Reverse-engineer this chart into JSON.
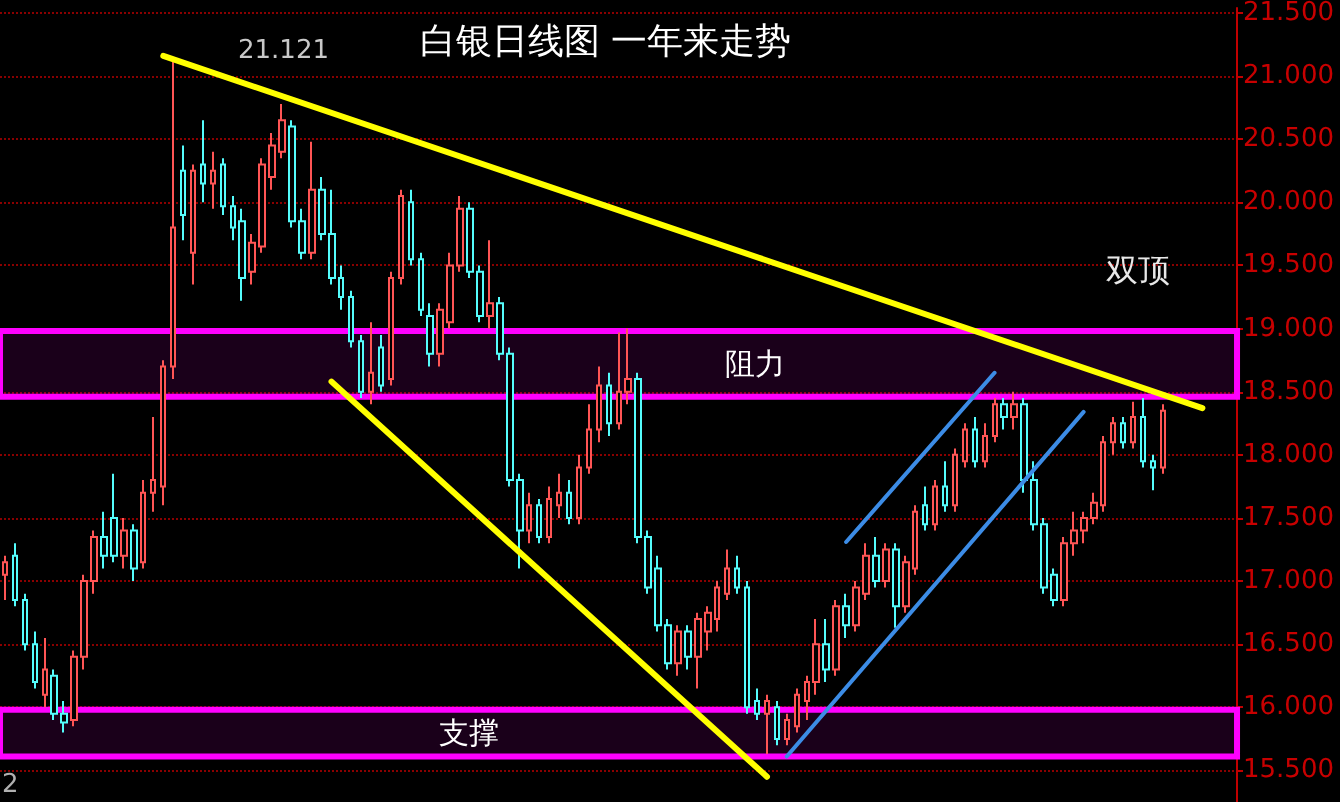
{
  "chart_data": {
    "type": "candlestick",
    "title": "白银日线图 一年来走势",
    "categories": [
      null,
      null,
      null,
      null,
      null,
      null,
      null,
      null,
      null,
      null,
      null,
      null,
      null,
      null,
      null,
      null,
      null,
      null,
      null,
      null,
      null,
      null,
      null,
      null,
      null,
      null,
      null,
      null,
      null,
      null,
      null,
      null,
      null,
      null,
      null,
      null,
      null,
      null,
      null,
      null,
      null,
      null,
      null,
      null,
      null,
      null,
      null,
      null,
      null,
      null,
      null,
      null,
      null,
      null,
      null,
      null,
      null,
      null,
      null,
      null,
      null,
      null,
      null,
      null,
      null,
      null,
      null,
      null,
      null,
      null,
      null,
      null,
      null,
      null,
      null,
      null,
      null,
      null,
      null,
      null,
      null,
      null,
      null,
      null,
      null,
      null,
      null,
      null,
      null,
      null,
      null,
      null,
      null,
      null,
      null,
      null,
      null,
      null,
      null,
      null,
      null,
      null,
      null,
      null,
      null,
      null,
      null,
      null,
      null,
      null,
      null,
      null,
      null,
      null,
      null,
      null,
      null,
      null,
      null,
      null,
      null,
      null,
      null,
      null,
      null
    ],
    "ohlc": [
      [
        17.05,
        17.2,
        16.85,
        17.15
      ],
      [
        17.2,
        17.3,
        16.8,
        16.85
      ],
      [
        16.85,
        16.9,
        16.45,
        16.5
      ],
      [
        16.5,
        16.6,
        16.15,
        16.2
      ],
      [
        16.1,
        16.55,
        16.0,
        16.3
      ],
      [
        16.25,
        16.3,
        15.9,
        15.95
      ],
      [
        15.95,
        16.05,
        15.8,
        15.88
      ],
      [
        15.9,
        16.45,
        15.85,
        16.4
      ],
      [
        16.4,
        17.05,
        16.3,
        17.0
      ],
      [
        17.0,
        17.4,
        16.9,
        17.35
      ],
      [
        17.35,
        17.55,
        17.1,
        17.2
      ],
      [
        17.5,
        17.85,
        17.15,
        17.2
      ],
      [
        17.2,
        17.5,
        17.1,
        17.4
      ],
      [
        17.4,
        17.45,
        17.0,
        17.1
      ],
      [
        17.15,
        17.8,
        17.1,
        17.7
      ],
      [
        17.7,
        18.3,
        17.55,
        17.8
      ],
      [
        17.75,
        18.75,
        17.6,
        18.7
      ],
      [
        18.7,
        21.121,
        18.6,
        19.8
      ],
      [
        20.25,
        20.45,
        19.7,
        19.9
      ],
      [
        19.6,
        20.3,
        19.35,
        20.25
      ],
      [
        20.3,
        20.65,
        20.0,
        20.15
      ],
      [
        20.15,
        20.4,
        19.95,
        20.25
      ],
      [
        20.3,
        20.35,
        19.9,
        19.97
      ],
      [
        19.97,
        20.05,
        19.7,
        19.8
      ],
      [
        19.85,
        19.95,
        19.22,
        19.4
      ],
      [
        19.45,
        19.75,
        19.35,
        19.68
      ],
      [
        19.65,
        20.35,
        19.6,
        20.3
      ],
      [
        20.2,
        20.55,
        20.1,
        20.45
      ],
      [
        20.4,
        20.78,
        20.35,
        20.65
      ],
      [
        20.6,
        20.65,
        19.8,
        19.85
      ],
      [
        19.85,
        19.95,
        19.55,
        19.6
      ],
      [
        19.6,
        20.48,
        19.55,
        20.1
      ],
      [
        20.1,
        20.2,
        19.7,
        19.75
      ],
      [
        19.75,
        20.1,
        19.35,
        19.4
      ],
      [
        19.4,
        19.5,
        19.15,
        19.25
      ],
      [
        19.25,
        19.3,
        18.85,
        18.9
      ],
      [
        18.9,
        18.95,
        18.45,
        18.5
      ],
      [
        18.5,
        19.05,
        18.4,
        18.65
      ],
      [
        18.85,
        18.95,
        18.5,
        18.55
      ],
      [
        18.6,
        19.45,
        18.55,
        19.4
      ],
      [
        19.4,
        20.1,
        19.35,
        20.05
      ],
      [
        20.0,
        20.1,
        19.5,
        19.55
      ],
      [
        19.55,
        19.6,
        19.1,
        19.15
      ],
      [
        19.1,
        19.2,
        18.7,
        18.8
      ],
      [
        18.8,
        19.2,
        18.7,
        19.15
      ],
      [
        19.05,
        19.6,
        19.0,
        19.5
      ],
      [
        19.5,
        20.05,
        19.45,
        19.95
      ],
      [
        19.95,
        20.0,
        19.4,
        19.45
      ],
      [
        19.45,
        19.5,
        19.05,
        19.1
      ],
      [
        19.1,
        19.7,
        19.0,
        19.2
      ],
      [
        19.2,
        19.25,
        18.75,
        18.8
      ],
      [
        18.8,
        18.85,
        17.75,
        17.8
      ],
      [
        17.8,
        17.85,
        17.1,
        17.4
      ],
      [
        17.4,
        17.7,
        17.3,
        17.6
      ],
      [
        17.6,
        17.65,
        17.3,
        17.35
      ],
      [
        17.35,
        17.75,
        17.3,
        17.65
      ],
      [
        17.6,
        17.85,
        17.5,
        17.7
      ],
      [
        17.7,
        17.8,
        17.45,
        17.5
      ],
      [
        17.5,
        18.0,
        17.45,
        17.9
      ],
      [
        17.9,
        18.4,
        17.85,
        18.2
      ],
      [
        18.2,
        18.7,
        18.1,
        18.55
      ],
      [
        18.55,
        18.65,
        18.15,
        18.25
      ],
      [
        18.25,
        18.97,
        18.2,
        18.5
      ],
      [
        18.5,
        19.0,
        18.4,
        18.6
      ],
      [
        18.6,
        18.65,
        17.3,
        17.35
      ],
      [
        17.35,
        17.4,
        16.9,
        16.95
      ],
      [
        17.1,
        17.2,
        16.6,
        16.65
      ],
      [
        16.65,
        16.7,
        16.3,
        16.35
      ],
      [
        16.35,
        16.65,
        16.25,
        16.6
      ],
      [
        16.6,
        16.65,
        16.3,
        16.4
      ],
      [
        16.4,
        16.75,
        16.15,
        16.7
      ],
      [
        16.6,
        16.8,
        16.45,
        16.75
      ],
      [
        16.7,
        17.0,
        16.6,
        16.95
      ],
      [
        16.9,
        17.25,
        16.85,
        17.1
      ],
      [
        17.1,
        17.2,
        16.9,
        16.95
      ],
      [
        16.95,
        17.0,
        15.95,
        16.0
      ],
      [
        16.05,
        16.15,
        15.9,
        15.95
      ],
      [
        15.95,
        16.1,
        15.63,
        16.05
      ],
      [
        16.0,
        16.05,
        15.7,
        15.75
      ],
      [
        15.75,
        15.95,
        15.7,
        15.9
      ],
      [
        15.85,
        16.15,
        15.8,
        16.1
      ],
      [
        16.05,
        16.25,
        15.9,
        16.2
      ],
      [
        16.2,
        16.7,
        16.1,
        16.5
      ],
      [
        16.5,
        16.7,
        16.2,
        16.3
      ],
      [
        16.3,
        16.85,
        16.25,
        16.8
      ],
      [
        16.8,
        16.9,
        16.55,
        16.65
      ],
      [
        16.65,
        17.0,
        16.6,
        16.95
      ],
      [
        16.9,
        17.3,
        16.85,
        17.2
      ],
      [
        17.2,
        17.35,
        16.95,
        17.0
      ],
      [
        17.0,
        17.3,
        16.95,
        17.25
      ],
      [
        17.25,
        17.3,
        16.63,
        16.8
      ],
      [
        16.8,
        17.2,
        16.75,
        17.15
      ],
      [
        17.1,
        17.6,
        17.05,
        17.55
      ],
      [
        17.6,
        17.75,
        17.4,
        17.45
      ],
      [
        17.45,
        17.8,
        17.4,
        17.75
      ],
      [
        17.75,
        17.95,
        17.55,
        17.6
      ],
      [
        17.6,
        18.05,
        17.55,
        18.0
      ],
      [
        17.95,
        18.25,
        17.9,
        18.2
      ],
      [
        18.2,
        18.3,
        17.9,
        17.95
      ],
      [
        17.95,
        18.25,
        17.9,
        18.15
      ],
      [
        18.15,
        18.45,
        18.1,
        18.4
      ],
      [
        18.4,
        18.45,
        18.2,
        18.3
      ],
      [
        18.3,
        18.5,
        18.2,
        18.4
      ],
      [
        18.4,
        18.45,
        17.7,
        17.8
      ],
      [
        17.8,
        17.95,
        17.4,
        17.45
      ],
      [
        17.45,
        17.5,
        16.9,
        16.95
      ],
      [
        17.05,
        17.1,
        16.8,
        16.85
      ],
      [
        16.85,
        17.35,
        16.8,
        17.3
      ],
      [
        17.3,
        17.55,
        17.2,
        17.4
      ],
      [
        17.4,
        17.55,
        17.3,
        17.5
      ],
      [
        17.5,
        17.7,
        17.45,
        17.62
      ],
      [
        17.6,
        18.15,
        17.55,
        18.1
      ],
      [
        18.1,
        18.3,
        18.0,
        18.25
      ],
      [
        18.25,
        18.3,
        18.05,
        18.1
      ],
      [
        18.1,
        18.42,
        18.05,
        18.3
      ],
      [
        18.3,
        18.45,
        17.9,
        17.95
      ],
      [
        17.95,
        18.0,
        17.72,
        17.9
      ],
      [
        17.9,
        18.4,
        17.85,
        18.35
      ],
      null,
      null,
      null,
      null,
      null,
      null,
      null
    ],
    "colors": [
      "#ff5555",
      "#54fcfc",
      "#54fcfc",
      "#54fcfc",
      "#ff5555",
      "#54fcfc",
      "#54fcfc",
      "#ff5555",
      "#ff5555",
      "#ff5555",
      "#54fcfc",
      "#54fcfc",
      "#ff5555",
      "#54fcfc",
      "#ff5555",
      "#ff5555",
      "#ff5555",
      "#ff5555",
      "#54fcfc",
      "#ff5555",
      "#54fcfc",
      "#ff5555",
      "#54fcfc",
      "#54fcfc",
      "#54fcfc",
      "#ff5555",
      "#ff5555",
      "#ff5555",
      "#ff5555",
      "#54fcfc",
      "#54fcfc",
      "#ff5555",
      "#54fcfc",
      "#54fcfc",
      "#54fcfc",
      "#54fcfc",
      "#54fcfc",
      "#ff5555",
      "#54fcfc",
      "#ff5555",
      "#ff5555",
      "#54fcfc",
      "#54fcfc",
      "#54fcfc",
      "#ff5555",
      "#ff5555",
      "#ff5555",
      "#54fcfc",
      "#54fcfc",
      "#ff5555",
      "#54fcfc",
      "#54fcfc",
      "#54fcfc",
      "#ff5555",
      "#54fcfc",
      "#ff5555",
      "#ff5555",
      "#54fcfc",
      "#ff5555",
      "#ff5555",
      "#ff5555",
      "#54fcfc",
      "#ff5555",
      "#ff5555",
      "#54fcfc",
      "#54fcfc",
      "#54fcfc",
      "#54fcfc",
      "#ff5555",
      "#54fcfc",
      "#ff5555",
      "#ff5555",
      "#ff5555",
      "#ff5555",
      "#54fcfc",
      "#54fcfc",
      "#54fcfc",
      "#ff5555",
      "#54fcfc",
      "#ff5555",
      "#ff5555",
      "#ff5555",
      "#ff5555",
      "#54fcfc",
      "#ff5555",
      "#54fcfc",
      "#ff5555",
      "#ff5555",
      "#54fcfc",
      "#ff5555",
      "#54fcfc",
      "#ff5555",
      "#ff5555",
      "#54fcfc",
      "#ff5555",
      "#54fcfc",
      "#ff5555",
      "#ff5555",
      "#54fcfc",
      "#ff5555",
      "#ff5555",
      "#54fcfc",
      "#ff5555",
      "#54fcfc",
      "#54fcfc",
      "#54fcfc",
      "#54fcfc",
      "#ff5555",
      "#ff5555",
      "#ff5555",
      "#ff5555",
      "#ff5555",
      "#ff5555",
      "#54fcfc",
      "#ff5555",
      "#54fcfc",
      "#54fcfc",
      "#ff5555",
      null,
      null,
      null,
      null,
      null,
      null,
      null
    ],
    "series": [
      {
        "type": "line",
        "color": "#ffff00",
        "values": [
          null,
          null,
          null,
          null,
          null,
          null,
          null,
          null,
          null,
          null,
          null,
          null,
          null,
          null,
          null,
          null,
          21.16,
          null,
          null,
          null,
          null,
          null,
          null,
          null,
          null,
          null,
          null,
          null,
          null,
          null,
          null,
          null,
          null,
          null,
          null,
          null,
          null,
          null,
          null,
          null,
          null,
          null,
          null,
          null,
          null,
          null,
          null,
          null,
          null,
          null,
          null,
          null,
          null,
          null,
          null,
          null,
          null,
          null,
          null,
          null,
          null,
          null,
          null,
          null,
          null,
          null,
          null,
          null,
          null,
          null,
          null,
          null,
          null,
          null,
          null,
          null,
          null,
          null,
          null,
          null,
          null,
          null,
          null,
          null,
          null,
          null,
          null,
          null,
          null,
          null,
          null,
          null,
          null,
          null,
          null,
          null,
          null,
          null,
          null,
          null,
          null,
          null,
          null,
          null,
          null,
          null,
          null,
          null,
          null,
          null,
          null,
          null,
          null,
          null,
          null,
          null,
          null,
          null,
          null,
          null,
          null,
          18.37,
          null,
          null,
          null
        ]
      },
      {
        "type": "line",
        "color": "#ffff00",
        "values": [
          null,
          null,
          null,
          null,
          null,
          null,
          null,
          null,
          null,
          null,
          null,
          null,
          null,
          null,
          null,
          null,
          null,
          null,
          null,
          null,
          null,
          null,
          null,
          null,
          null,
          null,
          null,
          null,
          null,
          null,
          null,
          null,
          null,
          18.58,
          null,
          null,
          null,
          null,
          null,
          null,
          null,
          null,
          null,
          null,
          null,
          null,
          null,
          null,
          null,
          null,
          null,
          null,
          null,
          null,
          null,
          null,
          null,
          null,
          null,
          null,
          null,
          null,
          null,
          null,
          null,
          null,
          null,
          null,
          null,
          null,
          null,
          null,
          null,
          null,
          null,
          null,
          null,
          15.45,
          null,
          null,
          null,
          null,
          null,
          null,
          null,
          null,
          null,
          null,
          null,
          null,
          null,
          null,
          null,
          null,
          null,
          null,
          null,
          null,
          null,
          null,
          null,
          null,
          null,
          null,
          null,
          null,
          null,
          null,
          null,
          null,
          null,
          null,
          null,
          null,
          null,
          null,
          null,
          null,
          null,
          null,
          null,
          null,
          null,
          null,
          null
        ]
      },
      {
        "type": "line",
        "color": "#3c8ce6",
        "values": [
          null,
          null,
          null,
          null,
          null,
          null,
          null,
          null,
          null,
          null,
          null,
          null,
          null,
          null,
          null,
          null,
          null,
          null,
          null,
          null,
          null,
          null,
          null,
          null,
          null,
          null,
          null,
          null,
          null,
          null,
          null,
          null,
          null,
          null,
          null,
          null,
          null,
          null,
          null,
          null,
          null,
          null,
          null,
          null,
          null,
          null,
          null,
          null,
          null,
          null,
          null,
          null,
          null,
          null,
          null,
          null,
          null,
          null,
          null,
          null,
          null,
          null,
          null,
          null,
          null,
          null,
          null,
          null,
          null,
          null,
          null,
          null,
          null,
          null,
          null,
          null,
          null,
          null,
          null,
          null,
          null,
          null,
          null,
          null,
          null,
          17.31,
          null,
          null,
          null,
          null,
          null,
          null,
          null,
          null,
          null,
          null,
          null,
          null,
          null,
          null,
          18.65,
          null,
          null,
          null,
          null,
          null,
          null,
          null,
          null,
          null,
          null,
          null,
          null,
          null,
          null,
          null,
          null,
          null,
          null,
          null,
          null,
          null,
          null,
          null,
          null
        ]
      },
      {
        "type": "line",
        "color": "#3c8ce6",
        "values": [
          null,
          null,
          null,
          null,
          null,
          null,
          null,
          null,
          null,
          null,
          null,
          null,
          null,
          null,
          null,
          null,
          null,
          null,
          null,
          null,
          null,
          null,
          null,
          null,
          null,
          null,
          null,
          null,
          null,
          null,
          null,
          null,
          null,
          null,
          null,
          null,
          null,
          null,
          null,
          null,
          null,
          null,
          null,
          null,
          null,
          null,
          null,
          null,
          null,
          null,
          null,
          null,
          null,
          null,
          null,
          null,
          null,
          null,
          null,
          null,
          null,
          null,
          null,
          null,
          null,
          null,
          null,
          null,
          null,
          null,
          null,
          null,
          null,
          null,
          null,
          null,
          null,
          null,
          null,
          15.61,
          null,
          null,
          null,
          null,
          null,
          null,
          null,
          null,
          null,
          null,
          null,
          null,
          null,
          null,
          null,
          null,
          null,
          null,
          null,
          null,
          null,
          null,
          null,
          null,
          null,
          null,
          null,
          null,
          null,
          18.34,
          null,
          null,
          null,
          null,
          null,
          null,
          null,
          null,
          null,
          null,
          null,
          null,
          null,
          null,
          null
        ]
      }
    ],
    "ylim": [
      15.25,
      21.54
    ],
    "yticks": [
      {
        "value": 15.5,
        "label": "15.500"
      },
      {
        "value": 16,
        "label": "16.000"
      },
      {
        "value": 16.5,
        "label": "16.500"
      },
      {
        "value": 17,
        "label": "17.000"
      },
      {
        "value": 17.5,
        "label": "17.500"
      },
      {
        "value": 18,
        "label": "18.000"
      },
      {
        "value": 18.5,
        "label": "18.500"
      },
      {
        "value": 19,
        "label": "19.000"
      },
      {
        "value": 19.5,
        "label": "19.500"
      },
      {
        "value": 20,
        "label": "20.000"
      },
      {
        "value": 20.5,
        "label": "20.500"
      },
      {
        "value": 21,
        "label": "21.000"
      },
      {
        "value": 21.5,
        "label": "21.500"
      }
    ],
    "bands": [
      {
        "axis": "y",
        "from": 18.46,
        "to": 18.98,
        "label": "阻力",
        "color": "#ff00ff"
      },
      {
        "axis": "y",
        "from": 15.61,
        "to": 15.98,
        "label": "支撑",
        "color": "#ff00ff"
      }
    ],
    "annotations": [
      "21.121",
      "双顶",
      "2"
    ],
    "grid": "y",
    "tick_labels": "y"
  }
}
